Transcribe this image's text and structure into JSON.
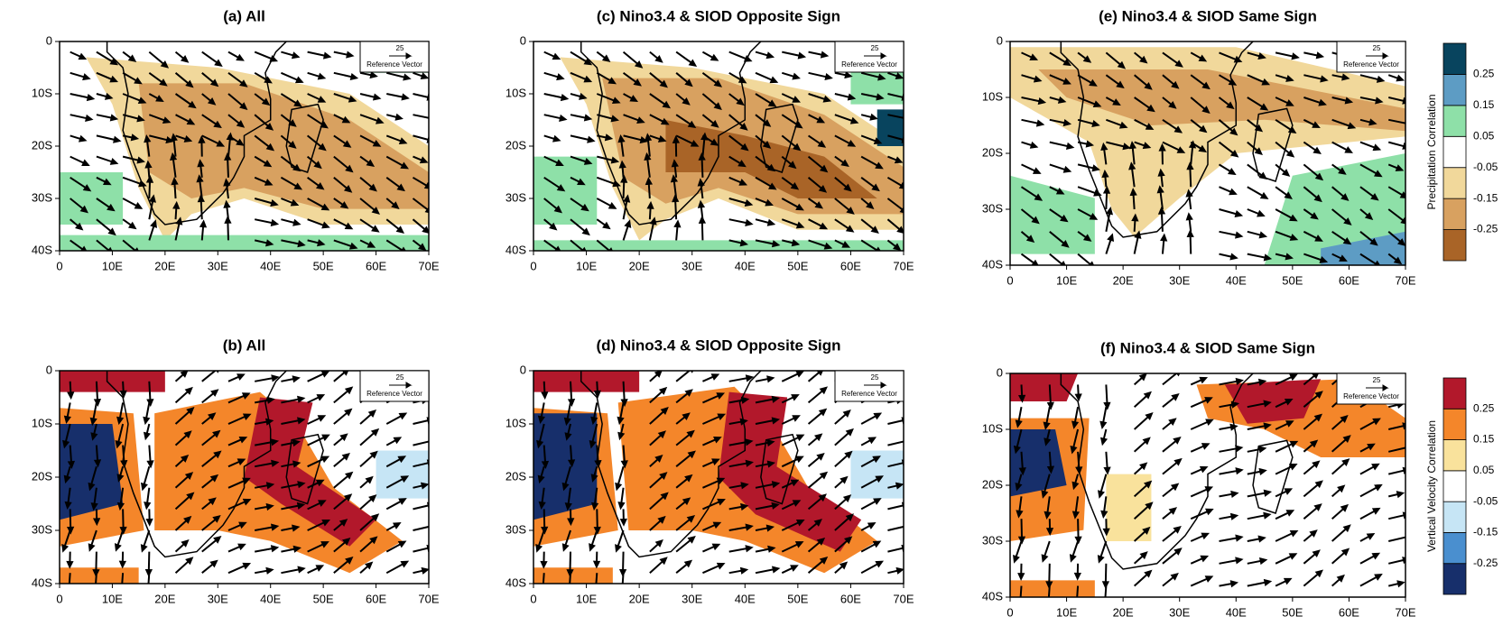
{
  "figure": {
    "rows": [
      {
        "colorbar": {
          "label": "Precipitation Correlation",
          "levels": [
            -0.25,
            -0.15,
            -0.05,
            0.05,
            0.15,
            0.25
          ],
          "colors": [
            "#a96427",
            "#d8a160",
            "#f1d89b",
            "#ffffff",
            "#8ee0a8",
            "#5d9cc4",
            "#08445e"
          ]
        },
        "panels": [
          {
            "title": "(a) All"
          },
          {
            "title": "(c) Nino3.4 & SIOD Opposite Sign"
          },
          {
            "title": "(e) Nino3.4 & SIOD Same Sign"
          }
        ]
      },
      {
        "colorbar": {
          "label": "Vertical Velocity Correlation",
          "levels": [
            -0.25,
            -0.15,
            -0.05,
            0.05,
            0.15,
            0.25
          ],
          "colors": [
            "#172f6b",
            "#4a8fcf",
            "#c6e5f5",
            "#ffffff",
            "#f9e29c",
            "#f4862a",
            "#b2182b"
          ]
        },
        "panels": [
          {
            "title": "(b) All"
          },
          {
            "title": "(d) Nino3.4 & SIOD Opposite Sign"
          },
          {
            "title": "(f) Nino3.4 & SIOD Same Sign"
          }
        ]
      }
    ],
    "xlim": [
      0,
      70
    ],
    "ylim": [
      -40,
      0
    ],
    "xticks": [
      0,
      {
        "value": 10,
        "label": "10E"
      },
      {
        "value": 20,
        "label": "20E"
      },
      {
        "value": 30,
        "label": "30E"
      },
      {
        "value": 40,
        "label": "40E"
      },
      {
        "value": 50,
        "label": "50E"
      },
      {
        "value": 60,
        "label": "60E"
      },
      {
        "value": 70,
        "label": "70E"
      }
    ],
    "yticks": [
      0,
      {
        "value": -10,
        "label": "10S"
      },
      {
        "value": -20,
        "label": "20S"
      },
      {
        "value": -30,
        "label": "30S"
      },
      {
        "value": -40,
        "label": "40S"
      }
    ],
    "reference_vector": {
      "magnitude": 25,
      "label": "Reference Vector"
    }
  }
}
